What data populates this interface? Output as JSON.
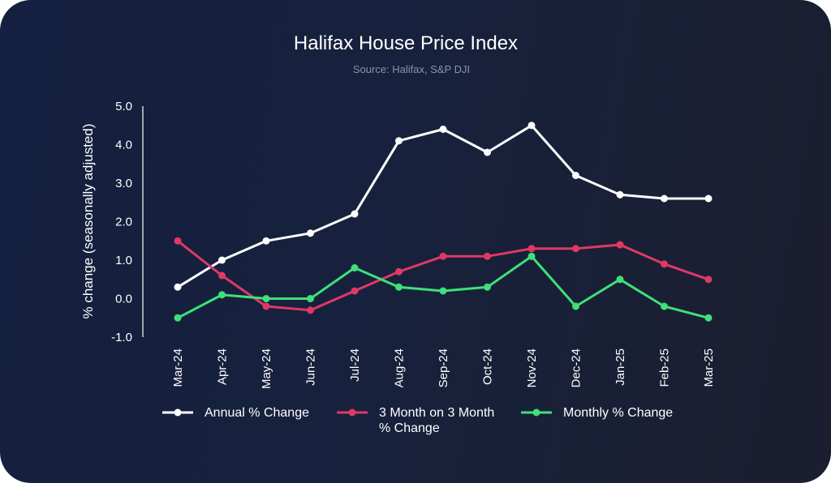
{
  "chart_data": {
    "type": "line",
    "title": "Halifax House Price Index",
    "subtitle": "Source: Halifax, S&P DJI",
    "ylabel": "% change (seasonally adjusted)",
    "xlabel": "",
    "ylim": [
      -1.0,
      5.0
    ],
    "yticks": [
      "-1.0",
      "0.0",
      "1.0",
      "2.0",
      "3.0",
      "4.0",
      "5.0"
    ],
    "categories": [
      "Mar-24",
      "Apr-24",
      "May-24",
      "Jun-24",
      "Jul-24",
      "Aug-24",
      "Sep-24",
      "Oct-24",
      "Nov-24",
      "Dec-24",
      "Jan-25",
      "Feb-25",
      "Mar-25"
    ],
    "grid": false,
    "legend_position": "bottom",
    "series": [
      {
        "name": "Annual % Change",
        "color": "#ffffff",
        "values": [
          0.3,
          1.0,
          1.5,
          1.7,
          2.2,
          4.1,
          4.4,
          3.8,
          4.5,
          3.2,
          2.7,
          2.6,
          2.6
        ]
      },
      {
        "name": "3 Month on 3 Month % Change",
        "color": "#e03866",
        "values": [
          1.5,
          0.6,
          -0.2,
          -0.3,
          0.2,
          0.7,
          1.1,
          1.1,
          1.3,
          1.3,
          1.4,
          0.9,
          0.5
        ]
      },
      {
        "name": "Monthly % Change",
        "color": "#3fe07a",
        "values": [
          -0.5,
          0.1,
          0.0,
          0.0,
          0.8,
          0.3,
          0.2,
          0.3,
          1.1,
          -0.2,
          0.5,
          -0.2,
          -0.5
        ]
      }
    ]
  }
}
